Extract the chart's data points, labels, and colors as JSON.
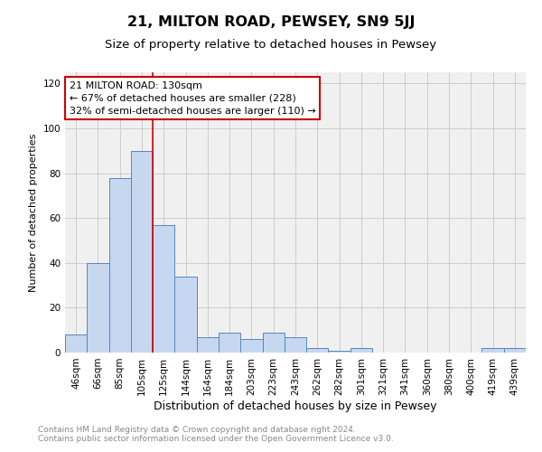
{
  "title": "21, MILTON ROAD, PEWSEY, SN9 5JJ",
  "subtitle": "Size of property relative to detached houses in Pewsey",
  "xlabel": "Distribution of detached houses by size in Pewsey",
  "ylabel": "Number of detached properties",
  "bar_labels": [
    "46sqm",
    "66sqm",
    "85sqm",
    "105sqm",
    "125sqm",
    "144sqm",
    "164sqm",
    "184sqm",
    "203sqm",
    "223sqm",
    "243sqm",
    "262sqm",
    "282sqm",
    "301sqm",
    "321sqm",
    "341sqm",
    "360sqm",
    "380sqm",
    "400sqm",
    "419sqm",
    "439sqm"
  ],
  "bar_values": [
    8,
    40,
    78,
    90,
    57,
    34,
    7,
    9,
    6,
    9,
    7,
    2,
    1,
    2,
    0,
    0,
    0,
    0,
    0,
    2,
    2
  ],
  "bar_color": "#c5d8f0",
  "bar_edge_color": "#5588bb",
  "bar_edge_width": 0.7,
  "vline_x_bar_index": 4,
  "vline_color": "#cc0000",
  "vline_linewidth": 1.2,
  "annotation_line1": "21 MILTON ROAD: 130sqm",
  "annotation_line2": "← 67% of detached houses are smaller (228)",
  "annotation_line3": "32% of semi-detached houses are larger (110) →",
  "ylim": [
    0,
    125
  ],
  "yticks": [
    0,
    20,
    40,
    60,
    80,
    100,
    120
  ],
  "grid_color": "#cccccc",
  "background_color": "#f0f0f0",
  "footnote1": "Contains HM Land Registry data © Crown copyright and database right 2024.",
  "footnote2": "Contains public sector information licensed under the Open Government Licence v3.0.",
  "title_fontsize": 11.5,
  "subtitle_fontsize": 9.5,
  "xlabel_fontsize": 9,
  "ylabel_fontsize": 8,
  "tick_fontsize": 7.5,
  "annotation_fontsize": 8,
  "footnote_fontsize": 6.5
}
